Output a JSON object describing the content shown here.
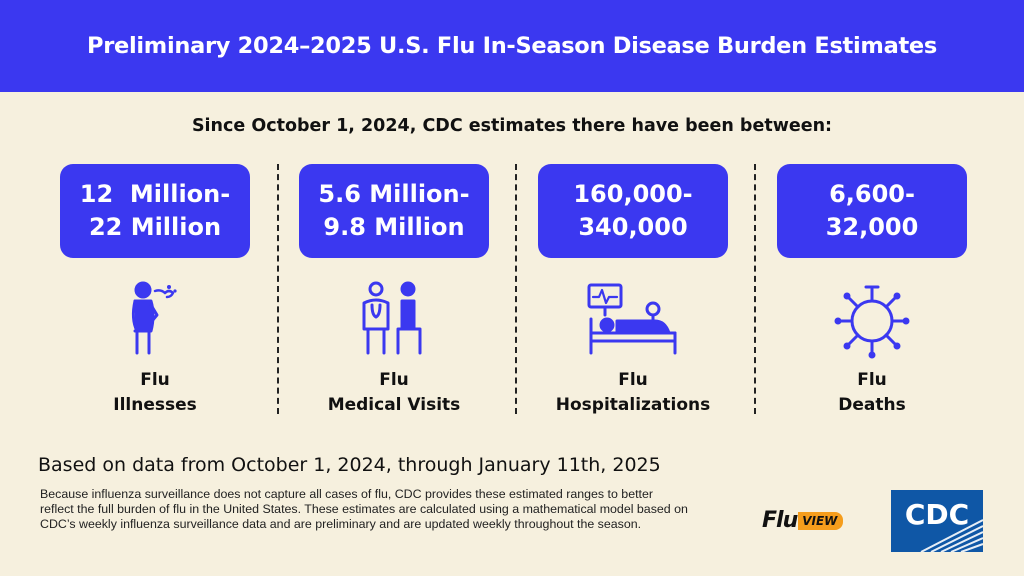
{
  "title": "Preliminary 2024–2025 U.S. Flu In-Season Disease Burden Estimates",
  "intro": "Since October 1, 2024, CDC estimates there have been between:",
  "stats": [
    {
      "line1": "12  Million-",
      "line2": "22 Million",
      "label1": "Flu",
      "label2": "Illnesses",
      "icon": "sick-person-icon"
    },
    {
      "line1": "5.6 Million-",
      "line2": "9.8 Million",
      "label1": "Flu",
      "label2": "Medical Visits",
      "icon": "doctor-patient-icon"
    },
    {
      "line1": "160,000-",
      "line2": "340,000",
      "label1": "Flu",
      "label2": "Hospitalizations",
      "icon": "hospital-bed-icon"
    },
    {
      "line1": "6,600-",
      "line2": "32,000",
      "label1": "Flu",
      "label2": "Deaths",
      "icon": "virus-icon"
    }
  ],
  "based_on": "Based on data from October 1, 2024, through January 11th, 2025",
  "note": "Because influenza surveillance does not capture all cases of flu, CDC provides these estimated ranges to better reflect the full burden of flu in the United States. These estimates are calculated using a mathematical model based on CDC’s weekly influenza surveillance data and are preliminary and are updated weekly throughout the season.",
  "fluview": {
    "flu": "Flu",
    "view": "VIEW"
  },
  "cdc_logo": "CDC",
  "colors": {
    "accent": "#3b38f0",
    "background": "#f6f0de",
    "fluview_orange": "#f59d1c",
    "cdc_blue": "#0f57a6"
  }
}
